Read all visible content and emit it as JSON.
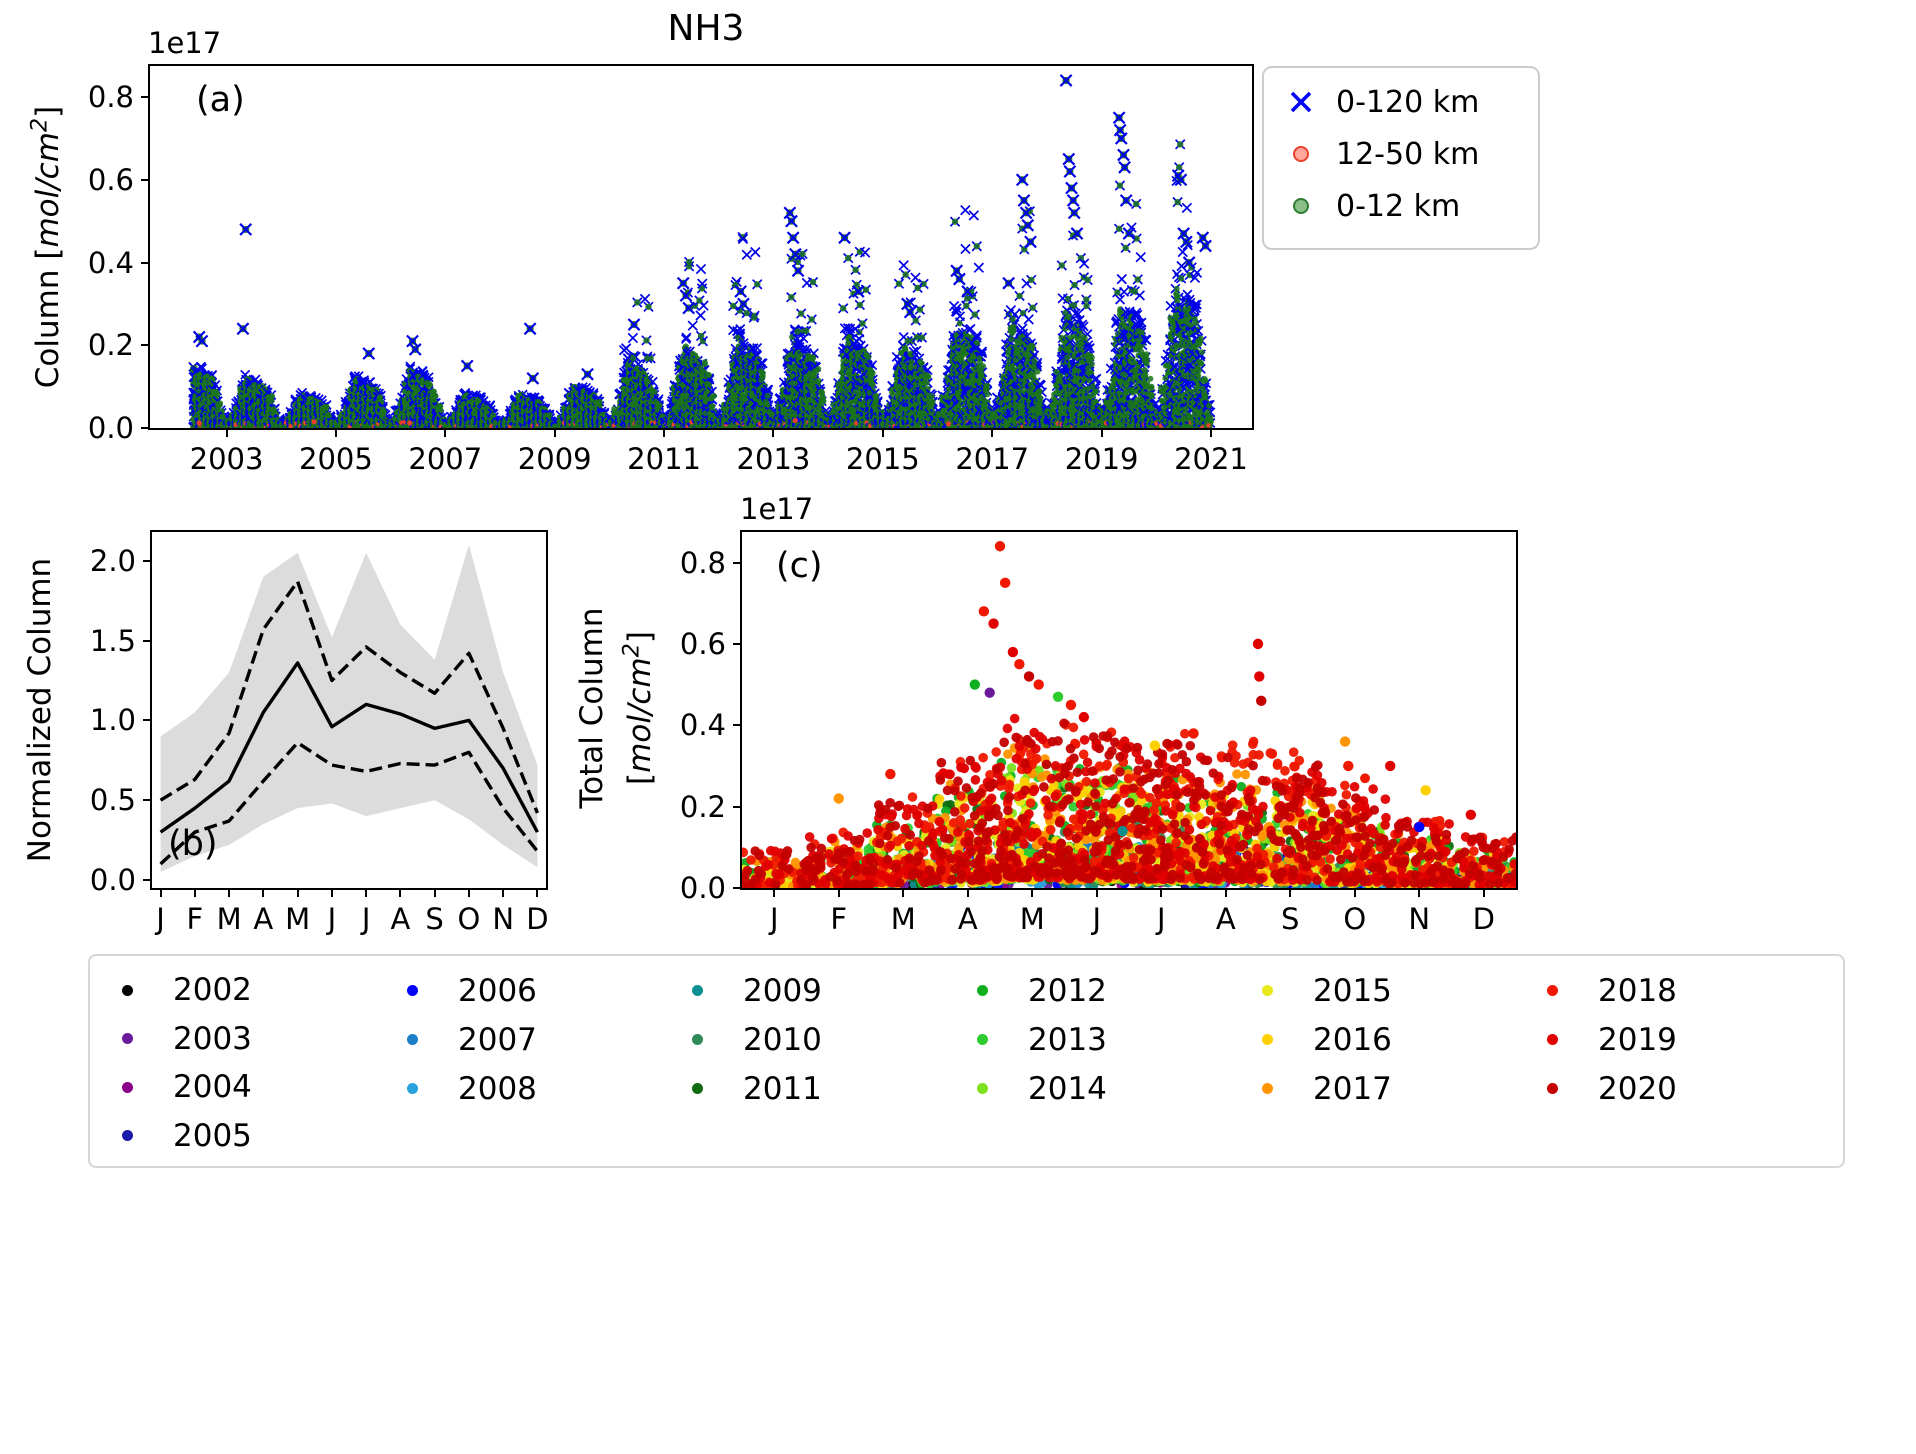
{
  "figure": {
    "title": "NH3",
    "background": "#ffffff"
  },
  "chart_data": [
    {
      "id": "a",
      "type": "scatter",
      "title": "NH3",
      "panel_label": "(a)",
      "ylabel": "Column [mol/cm^2]",
      "ylabel_parts": {
        "pre": "Column [",
        "math": "mol/cm",
        "sup": "2",
        "post": "]"
      },
      "y_offset_text": "1e17",
      "x_axis": "year",
      "xlim": [
        2001.6,
        2021.75
      ],
      "ylim": [
        0,
        0.875
      ],
      "xticks": [
        2003,
        2005,
        2007,
        2009,
        2011,
        2013,
        2015,
        2017,
        2019,
        2021
      ],
      "yticks": [
        0.0,
        0.2,
        0.4,
        0.6,
        0.8
      ],
      "data_time_range": [
        2002.4,
        2021.0
      ],
      "legend": {
        "position": "upper right outside",
        "entries": [
          {
            "label": "0-120 km",
            "marker": "x",
            "color": "#0000ff"
          },
          {
            "label": "12-50 km",
            "marker": "circle",
            "fill": "#ff7a66",
            "edge": "#e8402c"
          },
          {
            "label": "0-12 km",
            "marker": "circle",
            "fill": "#63a963",
            "edge": "#2e7d32"
          }
        ]
      },
      "series": [
        {
          "name": "0-120 km",
          "marker": "x",
          "color": "#0000e6"
        },
        {
          "name": "12-50 km",
          "marker": "o",
          "color": "#e8402c",
          "note": "values near zero"
        },
        {
          "name": "0-12 km",
          "marker": "o",
          "color": "#1b761b"
        }
      ],
      "seasonal_weights": [
        0.15,
        0.3,
        0.5,
        0.8,
        1.0,
        0.85,
        0.9,
        0.85,
        0.8,
        0.65,
        0.4,
        0.18
      ],
      "annual_envelope_1e17": {
        "2002": 0.15,
        "2003": 0.12,
        "2004": 0.08,
        "2005": 0.12,
        "2006": 0.14,
        "2007": 0.08,
        "2008": 0.08,
        "2009": 0.1,
        "2010": 0.16,
        "2011": 0.2,
        "2012": 0.22,
        "2013": 0.22,
        "2014": 0.22,
        "2015": 0.2,
        "2016": 0.26,
        "2017": 0.25,
        "2018": 0.28,
        "2019": 0.3,
        "2020": 0.34
      },
      "outliers_1e17": [
        {
          "t": 2002.5,
          "v": 0.22
        },
        {
          "t": 2002.55,
          "v": 0.21
        },
        {
          "t": 2003.3,
          "v": 0.24
        },
        {
          "t": 2003.35,
          "v": 0.48
        },
        {
          "t": 2005.6,
          "v": 0.18
        },
        {
          "t": 2006.4,
          "v": 0.21
        },
        {
          "t": 2006.45,
          "v": 0.19
        },
        {
          "t": 2007.4,
          "v": 0.15
        },
        {
          "t": 2008.55,
          "v": 0.24
        },
        {
          "t": 2008.6,
          "v": 0.12
        },
        {
          "t": 2009.6,
          "v": 0.13
        },
        {
          "t": 2010.45,
          "v": 0.25
        },
        {
          "t": 2011.35,
          "v": 0.35
        },
        {
          "t": 2011.4,
          "v": 0.32
        },
        {
          "t": 2011.45,
          "v": 0.29
        },
        {
          "t": 2012.4,
          "v": 0.33
        },
        {
          "t": 2012.45,
          "v": 0.3
        },
        {
          "t": 2013.3,
          "v": 0.52
        },
        {
          "t": 2013.33,
          "v": 0.5
        },
        {
          "t": 2013.36,
          "v": 0.46
        },
        {
          "t": 2013.4,
          "v": 0.42
        },
        {
          "t": 2013.45,
          "v": 0.38
        },
        {
          "t": 2014.3,
          "v": 0.46
        },
        {
          "t": 2014.55,
          "v": 0.33
        },
        {
          "t": 2015.45,
          "v": 0.3
        },
        {
          "t": 2015.5,
          "v": 0.28
        },
        {
          "t": 2016.35,
          "v": 0.38
        },
        {
          "t": 2016.4,
          "v": 0.36
        },
        {
          "t": 2016.55,
          "v": 0.33
        },
        {
          "t": 2017.3,
          "v": 0.35
        },
        {
          "t": 2017.55,
          "v": 0.6
        },
        {
          "t": 2017.58,
          "v": 0.55
        },
        {
          "t": 2017.62,
          "v": 0.52
        },
        {
          "t": 2017.65,
          "v": 0.49
        },
        {
          "t": 2017.7,
          "v": 0.45
        },
        {
          "t": 2018.35,
          "v": 0.84
        },
        {
          "t": 2018.4,
          "v": 0.65
        },
        {
          "t": 2018.42,
          "v": 0.62
        },
        {
          "t": 2018.45,
          "v": 0.58
        },
        {
          "t": 2018.48,
          "v": 0.55
        },
        {
          "t": 2018.5,
          "v": 0.52
        },
        {
          "t": 2018.55,
          "v": 0.47
        },
        {
          "t": 2019.32,
          "v": 0.75
        },
        {
          "t": 2019.34,
          "v": 0.72
        },
        {
          "t": 2019.36,
          "v": 0.7
        },
        {
          "t": 2019.4,
          "v": 0.66
        },
        {
          "t": 2019.42,
          "v": 0.63
        },
        {
          "t": 2019.45,
          "v": 0.55
        },
        {
          "t": 2019.5,
          "v": 0.47
        },
        {
          "t": 2020.4,
          "v": 0.61
        },
        {
          "t": 2020.45,
          "v": 0.6
        },
        {
          "t": 2020.5,
          "v": 0.47
        },
        {
          "t": 2020.55,
          "v": 0.45
        },
        {
          "t": 2020.6,
          "v": 0.4
        },
        {
          "t": 2020.85,
          "v": 0.46
        },
        {
          "t": 2020.9,
          "v": 0.44
        }
      ],
      "red_points_1e17": [
        {
          "t": 2002.5,
          "v": 0.012
        },
        {
          "t": 2004.6,
          "v": 0.015
        },
        {
          "t": 2006.35,
          "v": 0.012
        },
        {
          "t": 2013.4,
          "v": 0.018
        },
        {
          "t": 2016.2,
          "v": 0.01
        }
      ]
    },
    {
      "id": "b",
      "type": "line",
      "panel_label": "(b)",
      "ylabel": "Normalized Column",
      "categories": [
        "J",
        "F",
        "M",
        "A",
        "M",
        "J",
        "J",
        "A",
        "S",
        "O",
        "N",
        "D"
      ],
      "yticks": [
        0.0,
        0.5,
        1.0,
        1.5,
        2.0
      ],
      "ylim": [
        -0.05,
        2.18
      ],
      "series": [
        {
          "name": "upper percentile",
          "style": "dashed",
          "color": "#000000",
          "values": [
            0.5,
            0.63,
            0.92,
            1.57,
            1.87,
            1.25,
            1.46,
            1.3,
            1.17,
            1.42,
            0.95,
            0.42
          ]
        },
        {
          "name": "lower percentile",
          "style": "dashed",
          "color": "#000000",
          "values": [
            0.1,
            0.3,
            0.37,
            0.62,
            0.86,
            0.72,
            0.68,
            0.73,
            0.72,
            0.8,
            0.45,
            0.18
          ]
        },
        {
          "name": "mean",
          "style": "solid",
          "color": "#000000",
          "values": [
            0.3,
            0.45,
            0.62,
            1.05,
            1.36,
            0.96,
            1.1,
            1.04,
            0.95,
            1.0,
            0.7,
            0.3
          ]
        }
      ],
      "band": {
        "color": "#dcdcdc",
        "upper": [
          0.9,
          1.05,
          1.3,
          1.9,
          2.05,
          1.52,
          2.05,
          1.6,
          1.38,
          2.1,
          1.3,
          0.72
        ],
        "lower": [
          0.05,
          0.15,
          0.22,
          0.35,
          0.45,
          0.48,
          0.4,
          0.45,
          0.5,
          0.38,
          0.22,
          0.08
        ]
      }
    },
    {
      "id": "c",
      "type": "scatter",
      "panel_label": "(c)",
      "ylabel": "Total Column [mol/cm^2]",
      "ylabel_parts": {
        "line1": "Total Column",
        "pre": "[",
        "math": "mol/cm",
        "sup": "2",
        "post": "]"
      },
      "y_offset_text": "1e17",
      "categories": [
        "J",
        "F",
        "M",
        "A",
        "M",
        "J",
        "J",
        "A",
        "S",
        "O",
        "N",
        "D"
      ],
      "yticks": [
        0.0,
        0.2,
        0.4,
        0.6,
        0.8
      ],
      "ylim": [
        0,
        0.875
      ],
      "month_density": [
        0.35,
        0.5,
        0.65,
        0.9,
        1.0,
        1.0,
        1.0,
        0.95,
        0.85,
        0.7,
        0.55,
        0.45
      ],
      "month_scale": [
        0.22,
        0.33,
        0.5,
        0.75,
        1.0,
        0.9,
        0.85,
        0.8,
        0.75,
        0.6,
        0.4,
        0.3
      ],
      "years": [
        {
          "year": 2002,
          "color": "#000000",
          "peak": 0.06,
          "n": 35
        },
        {
          "year": 2003,
          "color": "#6a1b9a",
          "peak": 0.12,
          "n": 45
        },
        {
          "year": 2004,
          "color": "#8b008b",
          "peak": 0.1,
          "n": 45
        },
        {
          "year": 2005,
          "color": "#1a1aa8",
          "peak": 0.12,
          "n": 55
        },
        {
          "year": 2006,
          "color": "#0000ff",
          "peak": 0.14,
          "n": 60
        },
        {
          "year": 2007,
          "color": "#1e7ec8",
          "peak": 0.12,
          "n": 60
        },
        {
          "year": 2008,
          "color": "#29a3dd",
          "peak": 0.12,
          "n": 65
        },
        {
          "year": 2009,
          "color": "#0d8f8f",
          "peak": 0.13,
          "n": 75
        },
        {
          "year": 2010,
          "color": "#2e8b57",
          "peak": 0.2,
          "n": 110
        },
        {
          "year": 2011,
          "color": "#0e6b0e",
          "peak": 0.28,
          "n": 140
        },
        {
          "year": 2012,
          "color": "#0faf20",
          "peak": 0.33,
          "n": 170
        },
        {
          "year": 2013,
          "color": "#2ecc2e",
          "peak": 0.3,
          "n": 190
        },
        {
          "year": 2014,
          "color": "#7de11c",
          "peak": 0.3,
          "n": 210
        },
        {
          "year": 2015,
          "color": "#e8e81a",
          "peak": 0.28,
          "n": 250
        },
        {
          "year": 2016,
          "color": "#ffd000",
          "peak": 0.3,
          "n": 290
        },
        {
          "year": 2017,
          "color": "#ff9500",
          "peak": 0.35,
          "n": 340
        },
        {
          "year": 2018,
          "color": "#f01800",
          "peak": 0.45,
          "n": 480
        },
        {
          "year": 2019,
          "color": "#e00000",
          "peak": 0.42,
          "n": 530
        },
        {
          "year": 2020,
          "color": "#c40000",
          "peak": 0.42,
          "n": 580
        }
      ],
      "outliers_1e17": [
        {
          "month": 4.0,
          "value": 0.84,
          "year": 2018
        },
        {
          "month": 4.08,
          "value": 0.75,
          "year": 2018
        },
        {
          "month": 3.75,
          "value": 0.68,
          "year": 2018
        },
        {
          "month": 3.9,
          "value": 0.65,
          "year": 2019
        },
        {
          "month": 4.2,
          "value": 0.58,
          "year": 2019
        },
        {
          "month": 4.3,
          "value": 0.55,
          "year": 2018
        },
        {
          "month": 4.45,
          "value": 0.52,
          "year": 2020
        },
        {
          "month": 4.6,
          "value": 0.5,
          "year": 2018
        },
        {
          "month": 3.61,
          "value": 0.5,
          "year": 2012
        },
        {
          "month": 3.84,
          "value": 0.48,
          "year": 2003
        },
        {
          "month": 4.9,
          "value": 0.47,
          "year": 2013
        },
        {
          "month": 5.1,
          "value": 0.45,
          "year": 2018
        },
        {
          "month": 5.3,
          "value": 0.42,
          "year": 2019
        },
        {
          "month": 8.0,
          "value": 0.6,
          "year": 2019
        },
        {
          "month": 8.02,
          "value": 0.52,
          "year": 2019
        },
        {
          "month": 8.05,
          "value": 0.46,
          "year": 2020
        },
        {
          "month": 7.0,
          "value": 0.38,
          "year": 2018
        },
        {
          "month": 9.35,
          "value": 0.36,
          "year": 2017
        },
        {
          "month": 9.4,
          "value": 0.3,
          "year": 2018
        },
        {
          "month": 10.05,
          "value": 0.3,
          "year": 2019
        },
        {
          "month": 6.4,
          "value": 0.35,
          "year": 2016
        },
        {
          "month": 2.3,
          "value": 0.28,
          "year": 2018
        },
        {
          "month": 1.5,
          "value": 0.22,
          "year": 2017
        },
        {
          "month": 10.6,
          "value": 0.24,
          "year": 2016
        },
        {
          "month": 10.5,
          "value": 0.15,
          "year": 2006
        },
        {
          "month": 5.9,
          "value": 0.14,
          "year": 2009
        },
        {
          "month": 11.3,
          "value": 0.18,
          "year": 2019
        }
      ]
    }
  ],
  "legend_years": {
    "columns": [
      [
        2002,
        2003,
        2004,
        2005
      ],
      [
        2006,
        2007,
        2008
      ],
      [
        2009,
        2010,
        2011
      ],
      [
        2012,
        2013,
        2014
      ],
      [
        2015,
        2016,
        2017
      ],
      [
        2018,
        2019,
        2020
      ]
    ]
  }
}
